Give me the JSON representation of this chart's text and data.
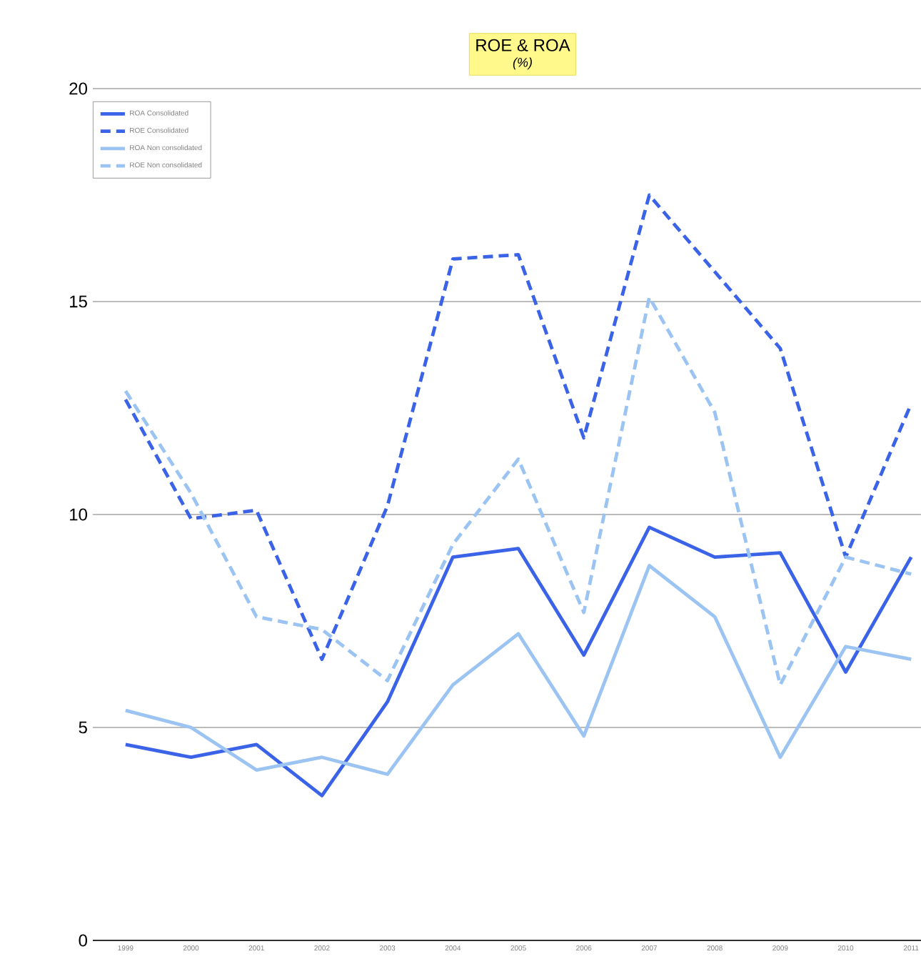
{
  "chart_data": {
    "type": "line",
    "title": "ROE & ROA",
    "subtitle": "(%)",
    "categories": [
      "1999",
      "2000",
      "2001",
      "2002",
      "2003",
      "2004",
      "2005",
      "2006",
      "2007",
      "2008",
      "2009",
      "2010",
      "2011"
    ],
    "series": [
      {
        "name": "ROA Consolidated",
        "color": "#3b63e8",
        "line_style": "solid",
        "values": [
          4.6,
          4.3,
          4.6,
          3.4,
          5.6,
          9.0,
          9.2,
          6.7,
          9.7,
          9.0,
          9.1,
          6.3,
          9.0
        ]
      },
      {
        "name": "ROE Consolidated",
        "color": "#3b63e8",
        "line_style": "dashed",
        "values": [
          12.7,
          9.9,
          10.1,
          6.6,
          10.2,
          16.0,
          16.1,
          11.8,
          17.5,
          15.7,
          13.9,
          9.0,
          12.6
        ]
      },
      {
        "name": "ROA Non consolidated",
        "color": "#9cc4f2",
        "line_style": "solid",
        "values": [
          5.4,
          5.0,
          4.0,
          4.3,
          3.9,
          6.0,
          7.2,
          4.8,
          8.8,
          7.6,
          4.3,
          6.9,
          6.6
        ]
      },
      {
        "name": "ROE Non consolidated",
        "color": "#9cc4f2",
        "line_style": "dashed",
        "values": [
          12.9,
          10.5,
          7.6,
          7.3,
          6.1,
          9.3,
          11.3,
          7.7,
          15.1,
          12.4,
          6.0,
          9.0,
          8.6
        ]
      }
    ],
    "ylim": [
      0,
      20
    ],
    "yticks": [
      0,
      5,
      10,
      15,
      20
    ],
    "grid": "y",
    "legend": "top left"
  }
}
